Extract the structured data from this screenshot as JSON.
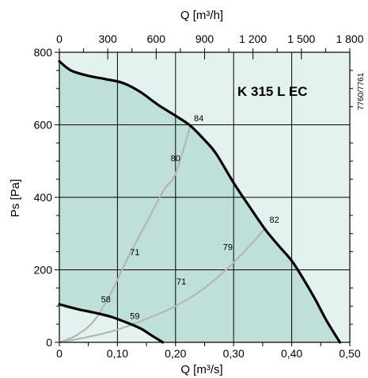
{
  "chart_data": {
    "type": "line",
    "title": "K 315 L EC",
    "reference_code": "7760/7761",
    "xlabel": "Q [m³/s]",
    "ylabel": "Ps [Pa]",
    "x2label": "Q [m³/h]",
    "xlim": [
      0,
      0.5
    ],
    "ylim": [
      0,
      800
    ],
    "x2lim": [
      0,
      1800
    ],
    "x_ticks": [
      "0",
      "0,10",
      "0,20",
      "0,30",
      "0,40",
      "0,50"
    ],
    "y_ticks": [
      "0",
      "200",
      "400",
      "600",
      "800"
    ],
    "x2_ticks": [
      "0",
      "300",
      "600",
      "900",
      "1 200",
      "1 500",
      "1 800"
    ],
    "grid": true,
    "colors": {
      "fan_curve": "#000000",
      "system_curve": "#b5b5b5",
      "plot_bg": "#e3f2ef",
      "region_fill": "#bfe0d9",
      "grid": "#000000"
    },
    "fan_curves": [
      {
        "points": [
          [
            0,
            775
          ],
          [
            0.02,
            750
          ],
          [
            0.05,
            735
          ],
          [
            0.08,
            726
          ],
          [
            0.11,
            715
          ],
          [
            0.14,
            690
          ],
          [
            0.17,
            655
          ],
          [
            0.2,
            625
          ],
          [
            0.225,
            598
          ],
          [
            0.25,
            558
          ],
          [
            0.27,
            520
          ],
          [
            0.3,
            440
          ],
          [
            0.33,
            368
          ],
          [
            0.355,
            310
          ],
          [
            0.38,
            262
          ],
          [
            0.4,
            225
          ],
          [
            0.42,
            175
          ],
          [
            0.44,
            120
          ],
          [
            0.46,
            60
          ],
          [
            0.483,
            0
          ]
        ]
      },
      {
        "points": [
          [
            0,
            105
          ],
          [
            0.03,
            92
          ],
          [
            0.06,
            82
          ],
          [
            0.09,
            70
          ],
          [
            0.12,
            52
          ],
          [
            0.14,
            38
          ],
          [
            0.16,
            18
          ],
          [
            0.178,
            0
          ]
        ]
      }
    ],
    "system_curves": [
      {
        "points": [
          [
            0,
            0
          ],
          [
            0.03,
            20
          ],
          [
            0.06,
            60
          ],
          [
            0.09,
            140
          ],
          [
            0.12,
            240
          ],
          [
            0.15,
            330
          ],
          [
            0.18,
            420
          ],
          [
            0.2,
            465
          ],
          [
            0.225,
            595
          ]
        ]
      },
      {
        "points": [
          [
            0,
            0
          ],
          [
            0.05,
            15
          ],
          [
            0.1,
            35
          ],
          [
            0.15,
            65
          ],
          [
            0.2,
            100
          ],
          [
            0.25,
            150
          ],
          [
            0.3,
            220
          ],
          [
            0.355,
            315
          ]
        ]
      }
    ],
    "annotations": [
      {
        "text": "84",
        "x": 0.24,
        "y": 610
      },
      {
        "text": "80",
        "x": 0.2,
        "y": 500
      },
      {
        "text": "71",
        "x": 0.13,
        "y": 240
      },
      {
        "text": "58",
        "x": 0.08,
        "y": 110
      },
      {
        "text": "82",
        "x": 0.37,
        "y": 330
      },
      {
        "text": "79",
        "x": 0.29,
        "y": 255
      },
      {
        "text": "71",
        "x": 0.21,
        "y": 160
      },
      {
        "text": "59",
        "x": 0.13,
        "y": 65
      }
    ]
  }
}
